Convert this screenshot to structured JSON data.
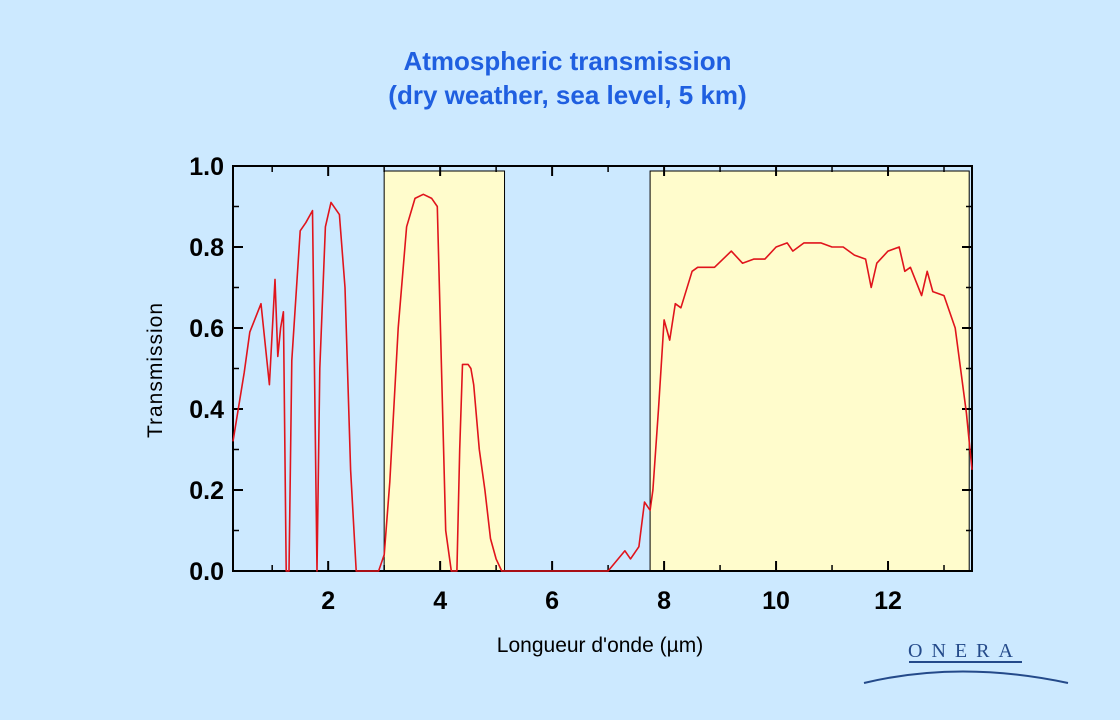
{
  "title_line1": "Atmospheric transmission",
  "title_line2": "(dry weather, sea level, 5 km)",
  "logo": {
    "text": "ONERA",
    "color": "#244a8a"
  },
  "colors": {
    "background": "#cce9ff",
    "title": "#1f5fe0",
    "line": "#e0141c",
    "band_fill": "#fffccc"
  },
  "chart_data": {
    "type": "line",
    "title": "Atmospheric transmission (dry weather, sea level, 5 km)",
    "xlabel": "Longueur d'onde (µm)",
    "ylabel": "Transmission",
    "xlim": [
      0.3,
      13.5
    ],
    "ylim": [
      0.0,
      1.0
    ],
    "xticks": [
      2,
      4,
      6,
      8,
      10,
      12
    ],
    "yticks": [
      0.0,
      0.2,
      0.4,
      0.6,
      0.8,
      1.0
    ],
    "xtick_labels": [
      "2",
      "4",
      "6",
      "8",
      "10",
      "12"
    ],
    "ytick_labels": [
      "0.0",
      "0.2",
      "0.4",
      "0.6",
      "0.8",
      "1.0"
    ],
    "grid": false,
    "highlight_bands": [
      {
        "x0": 3.0,
        "x1": 5.15
      },
      {
        "x0": 7.75,
        "x1": 13.45
      }
    ],
    "series": [
      {
        "x": [
          0.3,
          0.5,
          0.6,
          0.8,
          0.95,
          1.05,
          1.1,
          1.15,
          1.2,
          1.25,
          1.3,
          1.35,
          1.5,
          1.6,
          1.72,
          1.8,
          1.85,
          1.95,
          2.05,
          2.2,
          2.3,
          2.4,
          2.5,
          2.6,
          2.9,
          3.0,
          3.1,
          3.25,
          3.4,
          3.55,
          3.7,
          3.85,
          3.95,
          4.1,
          4.2,
          4.3,
          4.35,
          4.4,
          4.5,
          4.55,
          4.6,
          4.7,
          4.8,
          4.9,
          5.0,
          5.1,
          5.2,
          5.3,
          6.0,
          7.0,
          7.3,
          7.4,
          7.55,
          7.65,
          7.75,
          7.8,
          7.9,
          8.0,
          8.1,
          8.2,
          8.3,
          8.5,
          8.6,
          8.9,
          9.2,
          9.4,
          9.6,
          9.8,
          10.0,
          10.2,
          10.3,
          10.5,
          10.8,
          11.0,
          11.2,
          11.4,
          11.6,
          11.7,
          11.8,
          12.0,
          12.2,
          12.3,
          12.4,
          12.6,
          12.7,
          12.8,
          13.0,
          13.2,
          13.4,
          13.5
        ],
        "y": [
          0.32,
          0.49,
          0.59,
          0.66,
          0.46,
          0.72,
          0.53,
          0.6,
          0.64,
          0.0,
          0.0,
          0.52,
          0.84,
          0.86,
          0.89,
          0.0,
          0.5,
          0.85,
          0.91,
          0.88,
          0.7,
          0.25,
          0.0,
          0.0,
          0.0,
          0.04,
          0.22,
          0.6,
          0.85,
          0.92,
          0.93,
          0.92,
          0.9,
          0.1,
          0.0,
          0.0,
          0.3,
          0.51,
          0.51,
          0.5,
          0.46,
          0.3,
          0.2,
          0.08,
          0.03,
          0.0,
          0.0,
          0.0,
          0.0,
          0.0,
          0.05,
          0.03,
          0.06,
          0.17,
          0.15,
          0.2,
          0.4,
          0.62,
          0.57,
          0.66,
          0.65,
          0.74,
          0.75,
          0.75,
          0.79,
          0.76,
          0.77,
          0.77,
          0.8,
          0.81,
          0.79,
          0.81,
          0.81,
          0.8,
          0.8,
          0.78,
          0.77,
          0.7,
          0.76,
          0.79,
          0.8,
          0.74,
          0.75,
          0.68,
          0.74,
          0.69,
          0.68,
          0.6,
          0.39,
          0.25
        ]
      }
    ]
  }
}
